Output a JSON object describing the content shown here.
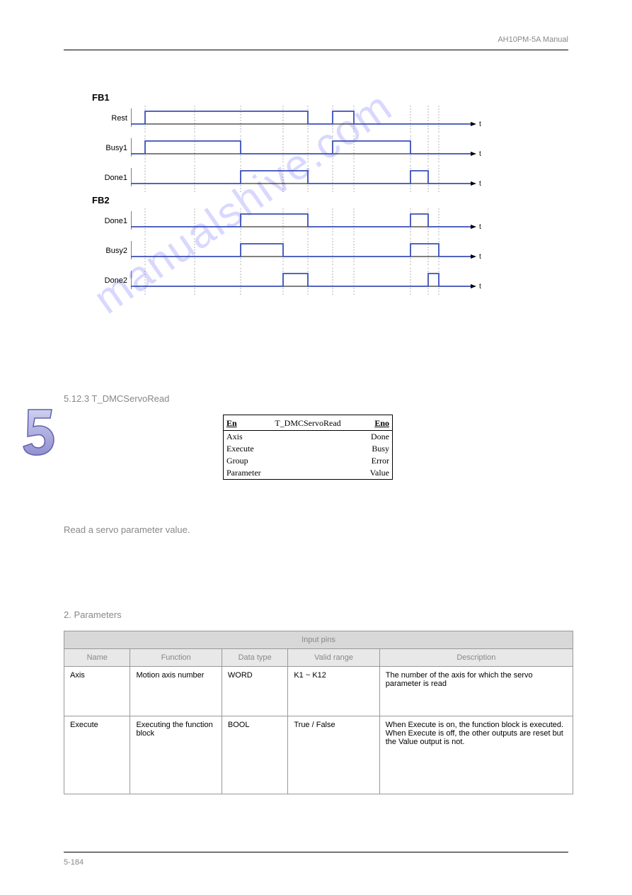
{
  "header": {
    "text": "AH10PM-5A Manual"
  },
  "diagram": {
    "fb1_label": "FB1",
    "fb2_label": "FB2",
    "colors": {
      "signal_line": "#3a4fb8",
      "axis_line": "#000000",
      "dotted": "#666666",
      "arrow": "#000000"
    },
    "axis_width": 480,
    "vlines": [
      20,
      90,
      155,
      215,
      250,
      285,
      315,
      395,
      420,
      435
    ],
    "signals": [
      {
        "group": "FB1",
        "label": "Rest",
        "tick1": "1",
        "tick0": "0",
        "pulses": [
          [
            20,
            250
          ],
          [
            285,
            315
          ]
        ]
      },
      {
        "group": "FB1",
        "label": "Busy1",
        "tick1": "1",
        "tick0": "0",
        "pulses": [
          [
            20,
            155
          ],
          [
            285,
            395
          ]
        ]
      },
      {
        "group": "FB1",
        "label": "Done1",
        "tick1": "1",
        "tick0": "0",
        "pulses": [
          [
            155,
            250
          ],
          [
            395,
            420
          ]
        ]
      },
      {
        "group": "FB2",
        "label": "Done1",
        "tick1": "1",
        "tick0": "0",
        "pulses": [
          [
            155,
            250
          ],
          [
            395,
            420
          ]
        ]
      },
      {
        "group": "FB2",
        "label": "Busy2",
        "tick1": "1",
        "tick0": "0",
        "pulses": [
          [
            155,
            215
          ],
          [
            395,
            435
          ]
        ]
      },
      {
        "group": "FB2",
        "label": "Done2",
        "tick1": "1",
        "tick0": "0",
        "pulses": [
          [
            215,
            250
          ],
          [
            420,
            435
          ]
        ]
      }
    ],
    "t_label": "t"
  },
  "section_fb": {
    "heading": "5.12.3 T_DMCServoRead"
  },
  "fb_block": {
    "title": "T_DMCServoRead",
    "en": "En",
    "eno": "Eno",
    "rows": [
      {
        "left": "Axis",
        "right": "Done"
      },
      {
        "left": "Execute",
        "right": "Busy"
      },
      {
        "left": "Group",
        "right": "Error"
      },
      {
        "left": "Parameter",
        "right": "Value"
      }
    ]
  },
  "section_desc": {
    "text1": "Read a servo parameter value.",
    "text2": "2. Parameters"
  },
  "table": {
    "group1_header": "Input pins",
    "columns": [
      "Name",
      "Function",
      "Data type",
      "Valid range",
      "Description"
    ],
    "rows": [
      {
        "name": "Axis",
        "function": "Motion axis number",
        "type": "WORD",
        "range": "K1 ~ K12",
        "desc": "The number of the axis for which the servo parameter is read"
      },
      {
        "name": "Execute",
        "function": "Executing the function block",
        "type": "BOOL",
        "range": "True / False",
        "desc": "When Execute is on, the function block is executed. When Execute is off, the other outputs are reset but the Value output is not."
      }
    ]
  },
  "footer": {
    "page": "5-184"
  },
  "watermark": "manualshive.com"
}
